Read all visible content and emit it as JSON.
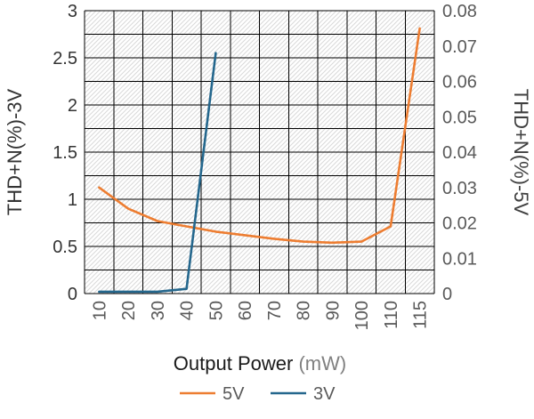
{
  "chart_data": {
    "type": "line",
    "title": "",
    "categories": [
      "10",
      "20",
      "30",
      "40",
      "50",
      "60",
      "70",
      "80",
      "90",
      "100",
      "110",
      "115"
    ],
    "xlabel": "Output Power",
    "xlabel_unit": "(mW)",
    "left_axis": {
      "title": "THD+N(%)-3V",
      "min": 0,
      "max": 3,
      "ticks": [
        "0",
        "0.5",
        "1",
        "1.5",
        "2",
        "2.5",
        "3"
      ],
      "minor_divisions": 12
    },
    "right_axis": {
      "title": "THD+N(%)-5V",
      "min": 0,
      "max": 0.08,
      "ticks": [
        "0",
        "0.01",
        "0.02",
        "0.03",
        "0.04",
        "0.05",
        "0.06",
        "0.07",
        "0.08"
      ]
    },
    "series": [
      {
        "name": "5V",
        "axis": "right",
        "color": "#ED7D31",
        "values": [
          0.03,
          0.024,
          0.0205,
          0.019,
          0.0175,
          0.0165,
          0.0155,
          0.0147,
          0.0144,
          0.0147,
          0.019,
          0.075
        ]
      },
      {
        "name": "3V",
        "axis": "left",
        "color": "#24678D",
        "values": [
          0.02,
          0.02,
          0.02,
          0.05,
          2.55,
          null,
          null,
          null,
          null,
          null,
          null,
          null
        ]
      }
    ],
    "grid": true,
    "legend_position": "bottom",
    "plot_background": "hatched"
  },
  "colors": {
    "grid_line": "#000000",
    "hatch_line": "#D9D9D9",
    "left_tick_text": "#333333",
    "right_tick_text": "#595959",
    "x_tick_text": "#595959",
    "axis_title_text": "#333333",
    "xlabel_text": "#1A1A1A",
    "xlabel_unit_text": "#808080",
    "legend_text": "#595959"
  }
}
